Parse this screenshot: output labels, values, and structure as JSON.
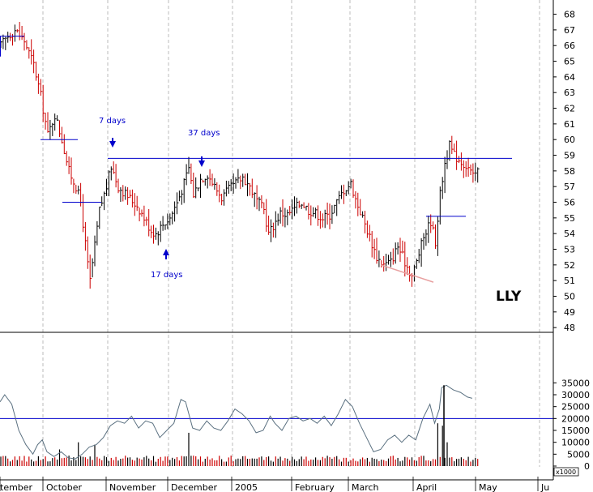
{
  "chart_data": [
    {
      "type": "ohlc",
      "ticker": "LLY",
      "ylim": [
        48,
        69
      ],
      "y_ticks": [
        48,
        49,
        50,
        51,
        52,
        53,
        54,
        55,
        56,
        57,
        58,
        59,
        60,
        61,
        62,
        63,
        64,
        65,
        66,
        67,
        68
      ],
      "x_month_labels": [
        "tember",
        "October",
        "November",
        "December",
        "2005",
        "February",
        "March",
        "April",
        "May",
        "Ju"
      ],
      "colors": {
        "up": "#000000",
        "down": "#cc0000",
        "resistance": "#0000cc",
        "trendline": "#e8a0a0",
        "grid": "#bbbbbb"
      },
      "resistance_level": 58.8,
      "annotations": [
        {
          "text": "7 days"
        },
        {
          "text": "37 days"
        },
        {
          "text": "17 days"
        }
      ],
      "trendline_low": [
        52.0,
        50.9
      ],
      "price_path": [
        {
          "i": 0,
          "v": 66.0
        },
        {
          "i": 3,
          "v": 66.6
        },
        {
          "i": 6,
          "v": 67.0
        },
        {
          "i": 10,
          "v": 66.3
        },
        {
          "i": 14,
          "v": 64.8
        },
        {
          "i": 17,
          "v": 62.8
        },
        {
          "i": 20,
          "v": 60.3
        },
        {
          "i": 23,
          "v": 61.6
        },
        {
          "i": 26,
          "v": 60.0
        },
        {
          "i": 29,
          "v": 58.0
        },
        {
          "i": 32,
          "v": 57.0
        },
        {
          "i": 34,
          "v": 56.0
        },
        {
          "i": 37,
          "v": 52.0
        },
        {
          "i": 38,
          "v": 51.0
        },
        {
          "i": 40,
          "v": 53.2
        },
        {
          "i": 42,
          "v": 55.5
        },
        {
          "i": 45,
          "v": 57.0
        },
        {
          "i": 47,
          "v": 58.3
        },
        {
          "i": 50,
          "v": 57.0
        },
        {
          "i": 54,
          "v": 56.4
        },
        {
          "i": 58,
          "v": 55.8
        },
        {
          "i": 61,
          "v": 55.0
        },
        {
          "i": 64,
          "v": 54.2
        },
        {
          "i": 66,
          "v": 54.0
        },
        {
          "i": 69,
          "v": 54.6
        },
        {
          "i": 72,
          "v": 55.0
        },
        {
          "i": 75,
          "v": 56.0
        },
        {
          "i": 78,
          "v": 57.2
        },
        {
          "i": 80,
          "v": 58.2
        },
        {
          "i": 82,
          "v": 56.5
        },
        {
          "i": 85,
          "v": 57.5
        },
        {
          "i": 88,
          "v": 57.8
        },
        {
          "i": 91,
          "v": 57.0
        },
        {
          "i": 94,
          "v": 56.3
        },
        {
          "i": 97,
          "v": 56.8
        },
        {
          "i": 100,
          "v": 57.2
        },
        {
          "i": 103,
          "v": 57.6
        },
        {
          "i": 106,
          "v": 57.0
        },
        {
          "i": 109,
          "v": 56.1
        },
        {
          "i": 112,
          "v": 55.5
        },
        {
          "i": 114,
          "v": 54.0
        },
        {
          "i": 116,
          "v": 54.5
        },
        {
          "i": 119,
          "v": 55.3
        },
        {
          "i": 122,
          "v": 55.2
        },
        {
          "i": 125,
          "v": 55.6
        },
        {
          "i": 128,
          "v": 56.0
        },
        {
          "i": 131,
          "v": 55.5
        },
        {
          "i": 134,
          "v": 55.3
        },
        {
          "i": 137,
          "v": 55.0
        },
        {
          "i": 140,
          "v": 55.2
        },
        {
          "i": 143,
          "v": 56.0
        },
        {
          "i": 146,
          "v": 56.8
        },
        {
          "i": 149,
          "v": 57.2
        },
        {
          "i": 151,
          "v": 56.2
        },
        {
          "i": 154,
          "v": 55.0
        },
        {
          "i": 157,
          "v": 53.8
        },
        {
          "i": 160,
          "v": 52.5
        },
        {
          "i": 163,
          "v": 52.0
        },
        {
          "i": 166,
          "v": 52.2
        },
        {
          "i": 169,
          "v": 53.2
        },
        {
          "i": 172,
          "v": 52.2
        },
        {
          "i": 175,
          "v": 51.3
        },
        {
          "i": 177,
          "v": 52.2
        },
        {
          "i": 180,
          "v": 53.8
        },
        {
          "i": 183,
          "v": 54.8
        },
        {
          "i": 185,
          "v": 53.5
        },
        {
          "i": 187,
          "v": 56.5
        },
        {
          "i": 189,
          "v": 58.5
        },
        {
          "i": 191,
          "v": 59.6
        },
        {
          "i": 193,
          "v": 59.0
        },
        {
          "i": 196,
          "v": 58.6
        },
        {
          "i": 199,
          "v": 58.2
        },
        {
          "i": 201,
          "v": 57.6
        },
        {
          "i": 203,
          "v": 58.0
        }
      ]
    },
    {
      "type": "line+bar",
      "ylim": [
        0,
        38000
      ],
      "y_ticks": [
        0,
        5000,
        10000,
        15000,
        20000,
        25000,
        30000,
        35000
      ],
      "unit_label": "x1000",
      "reference_level": 20000,
      "colors": {
        "line": "#5a7080",
        "bar_up": "#000000",
        "bar_down": "#cc0000",
        "reference": "#0000cc"
      },
      "line_path": [
        {
          "i": 0,
          "v": 27000
        },
        {
          "i": 2,
          "v": 30000
        },
        {
          "i": 5,
          "v": 26000
        },
        {
          "i": 8,
          "v": 15000
        },
        {
          "i": 11,
          "v": 9000
        },
        {
          "i": 14,
          "v": 5000
        },
        {
          "i": 16,
          "v": 9000
        },
        {
          "i": 18,
          "v": 11000
        },
        {
          "i": 20,
          "v": 6000
        },
        {
          "i": 23,
          "v": 4000
        },
        {
          "i": 26,
          "v": 6000
        },
        {
          "i": 29,
          "v": 3500
        },
        {
          "i": 32,
          "v": 3000
        },
        {
          "i": 35,
          "v": 5000
        },
        {
          "i": 38,
          "v": 8000
        },
        {
          "i": 41,
          "v": 9000
        },
        {
          "i": 44,
          "v": 12000
        },
        {
          "i": 47,
          "v": 17000
        },
        {
          "i": 50,
          "v": 19000
        },
        {
          "i": 53,
          "v": 18000
        },
        {
          "i": 56,
          "v": 21000
        },
        {
          "i": 59,
          "v": 16000
        },
        {
          "i": 62,
          "v": 19000
        },
        {
          "i": 65,
          "v": 18000
        },
        {
          "i": 68,
          "v": 12000
        },
        {
          "i": 71,
          "v": 15000
        },
        {
          "i": 74,
          "v": 18000
        },
        {
          "i": 77,
          "v": 28000
        },
        {
          "i": 79,
          "v": 27000
        },
        {
          "i": 82,
          "v": 16000
        },
        {
          "i": 85,
          "v": 15000
        },
        {
          "i": 88,
          "v": 19000
        },
        {
          "i": 91,
          "v": 16000
        },
        {
          "i": 94,
          "v": 15000
        },
        {
          "i": 97,
          "v": 19000
        },
        {
          "i": 100,
          "v": 24000
        },
        {
          "i": 103,
          "v": 22000
        },
        {
          "i": 106,
          "v": 19000
        },
        {
          "i": 109,
          "v": 14000
        },
        {
          "i": 112,
          "v": 15000
        },
        {
          "i": 115,
          "v": 21000
        },
        {
          "i": 117,
          "v": 18000
        },
        {
          "i": 120,
          "v": 15000
        },
        {
          "i": 123,
          "v": 20000
        },
        {
          "i": 126,
          "v": 21000
        },
        {
          "i": 129,
          "v": 19000
        },
        {
          "i": 132,
          "v": 20000
        },
        {
          "i": 135,
          "v": 18000
        },
        {
          "i": 138,
          "v": 21000
        },
        {
          "i": 141,
          "v": 17000
        },
        {
          "i": 144,
          "v": 22000
        },
        {
          "i": 147,
          "v": 28000
        },
        {
          "i": 150,
          "v": 25000
        },
        {
          "i": 153,
          "v": 18000
        },
        {
          "i": 156,
          "v": 12000
        },
        {
          "i": 159,
          "v": 6000
        },
        {
          "i": 162,
          "v": 7000
        },
        {
          "i": 165,
          "v": 11000
        },
        {
          "i": 168,
          "v": 13000
        },
        {
          "i": 171,
          "v": 10000
        },
        {
          "i": 174,
          "v": 13000
        },
        {
          "i": 177,
          "v": 11000
        },
        {
          "i": 180,
          "v": 20000
        },
        {
          "i": 183,
          "v": 26000
        },
        {
          "i": 185,
          "v": 18000
        },
        {
          "i": 187,
          "v": 24000
        },
        {
          "i": 188,
          "v": 33000
        },
        {
          "i": 190,
          "v": 34000
        },
        {
          "i": 193,
          "v": 32000
        },
        {
          "i": 196,
          "v": 31000
        },
        {
          "i": 199,
          "v": 29000
        },
        {
          "i": 201,
          "v": 28500
        }
      ],
      "volume_spikes": [
        {
          "i": 25,
          "v": 7000
        },
        {
          "i": 33,
          "v": 10000
        },
        {
          "i": 40,
          "v": 9000
        },
        {
          "i": 80,
          "v": 14000
        },
        {
          "i": 186,
          "v": 18000
        },
        {
          "i": 188,
          "v": 17000
        },
        {
          "i": 190,
          "v": 10000
        }
      ]
    }
  ]
}
